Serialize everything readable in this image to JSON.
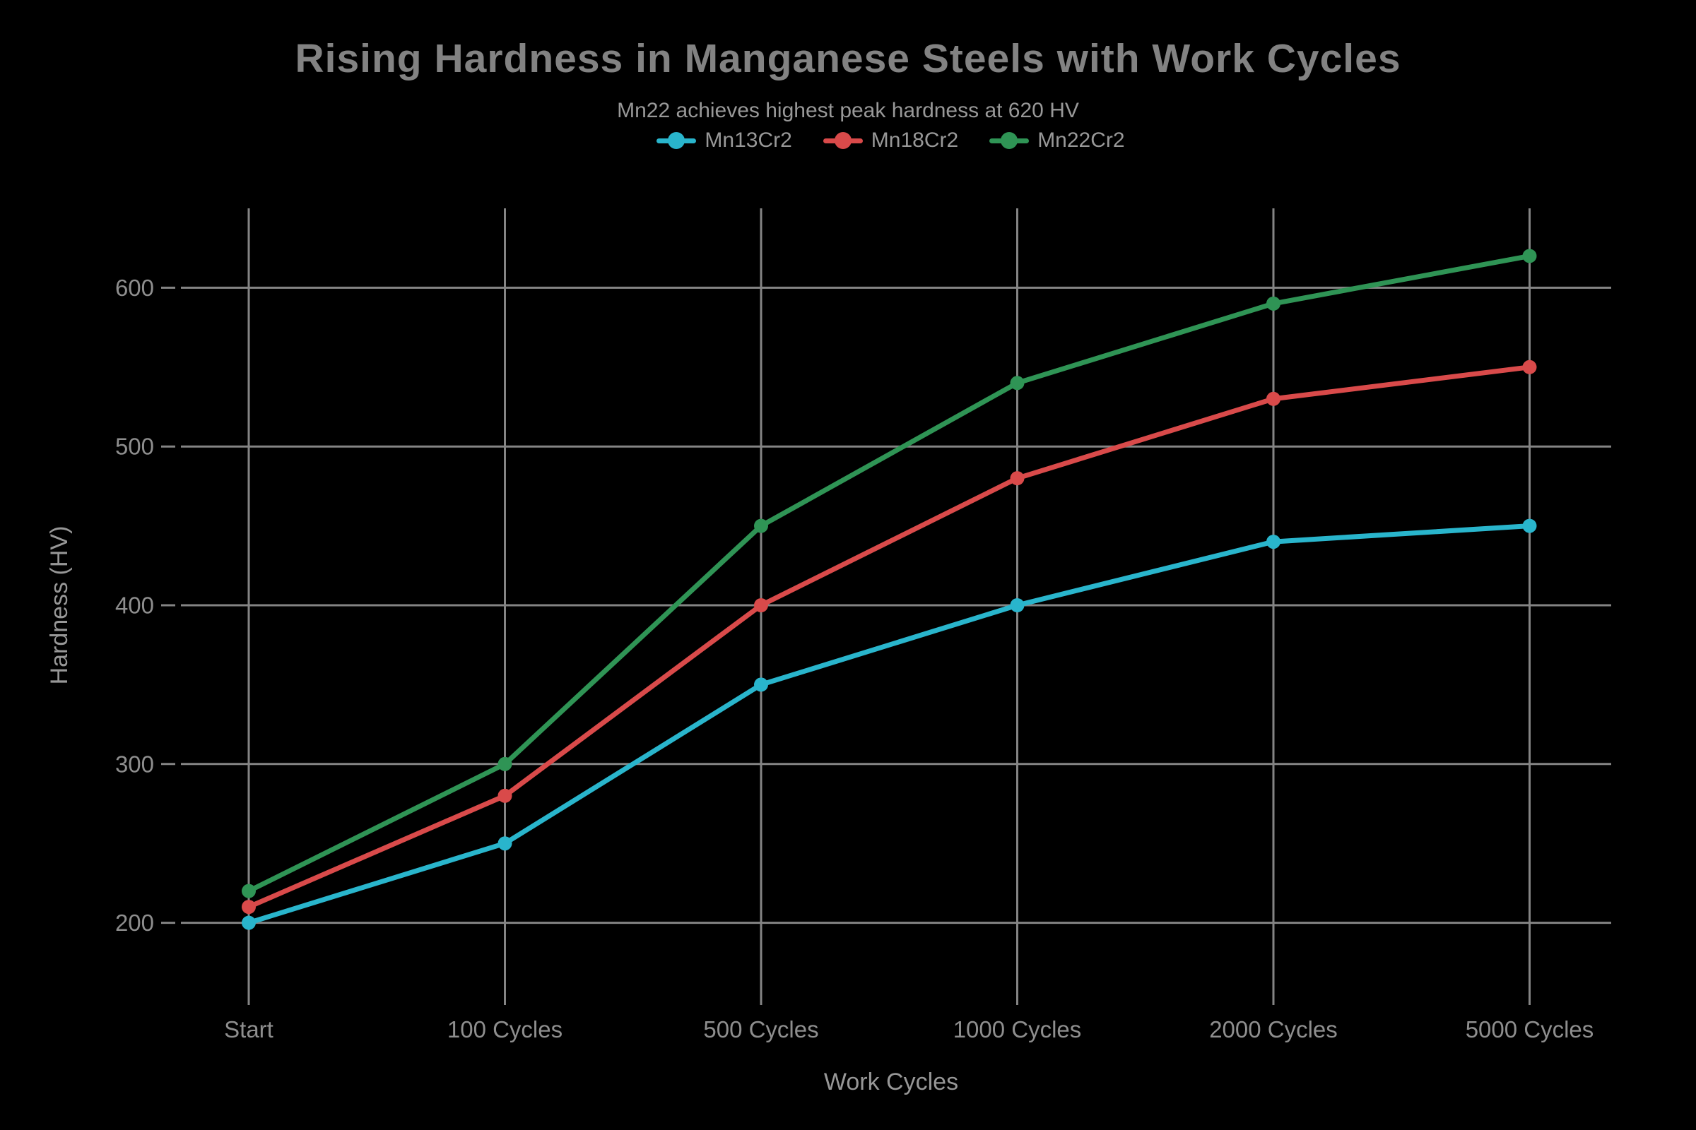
{
  "header": {
    "title": "Rising Hardness in Manganese Steels with Work Cycles",
    "subtitle": "Mn22 achieves highest peak hardness at 620 HV"
  },
  "chart_data": {
    "type": "line",
    "title": "Rising Hardness in Manganese Steels with Work Cycles",
    "subtitle": "Mn22 achieves highest peak hardness at 620 HV",
    "categories": [
      "Start",
      "100 Cycles",
      "500 Cycles",
      "1000 Cycles",
      "2000 Cycles",
      "5000 Cycles"
    ],
    "series": [
      {
        "name": "Mn13Cr2",
        "color": "#29B5CC",
        "values": [
          200,
          250,
          350,
          400,
          440,
          450
        ]
      },
      {
        "name": "Mn18Cr2",
        "color": "#D94A4A",
        "values": [
          210,
          280,
          400,
          480,
          530,
          550
        ]
      },
      {
        "name": "Mn22Cr2",
        "color": "#2F9455",
        "values": [
          220,
          300,
          450,
          540,
          590,
          620
        ]
      }
    ],
    "xlabel": "Work Cycles",
    "ylabel": "Hardness (HV)",
    "yticks": [
      200,
      300,
      400,
      500,
      600
    ],
    "ylim": [
      150,
      650
    ],
    "grid": true,
    "legend_position": "top-center",
    "colors": {
      "background": "#000000",
      "grid": "#848484",
      "tick_text": "#8E8E8E",
      "axis_title_text": "#979797",
      "title_text": "#828282",
      "subtitle_text": "#989898"
    }
  }
}
